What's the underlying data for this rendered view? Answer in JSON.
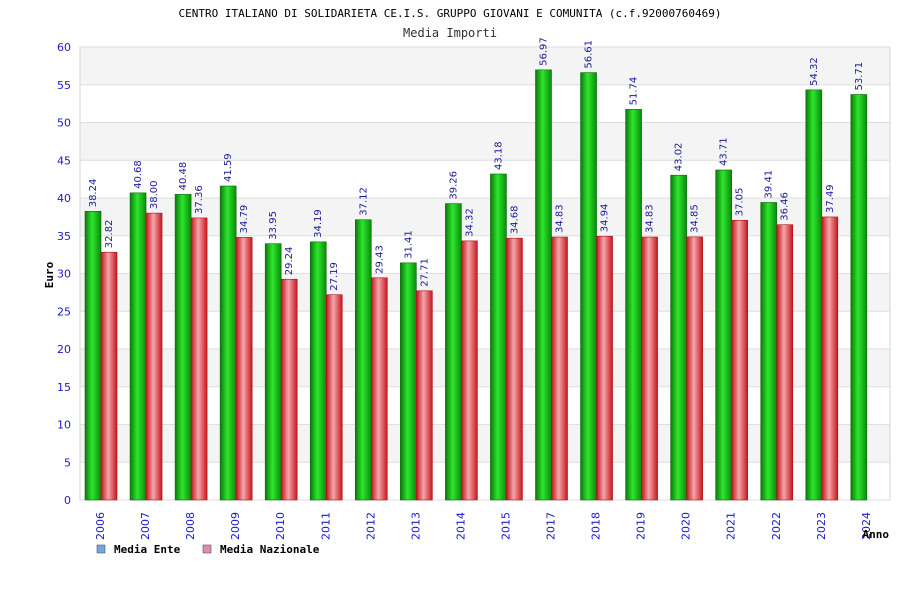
{
  "chart_data": {
    "type": "bar",
    "title": "CENTRO ITALIANO DI SOLIDARIETA CE.I.S. GRUPPO GIOVANI E COMUNITA (c.f.92000760469)",
    "subtitle": "Media Importi",
    "xlabel": "Anno",
    "ylabel": "Euro",
    "ylim": [
      0,
      60
    ],
    "yticks": [
      "0",
      "5",
      "10",
      "15",
      "20",
      "25",
      "30",
      "35",
      "40",
      "45",
      "50",
      "55",
      "60"
    ],
    "grid": true,
    "legend_position": "bottom-left",
    "categories": [
      "2006",
      "2007",
      "2008",
      "2009",
      "2010",
      "2011",
      "2012",
      "2013",
      "2014",
      "2015",
      "2017",
      "2018",
      "2019",
      "2020",
      "2021",
      "2022",
      "2023",
      "2024"
    ],
    "series": [
      {
        "name": "Media Ente",
        "legend_color": "#6ea6e8",
        "color": "#22c022",
        "values": [
          38.24,
          40.68,
          40.48,
          41.59,
          33.95,
          34.19,
          37.12,
          31.41,
          39.26,
          43.18,
          56.97,
          56.61,
          51.74,
          43.02,
          43.71,
          39.41,
          54.32,
          53.71
        ],
        "labels": [
          "38.24",
          "40.68",
          "40.48",
          "41.59",
          "33.95",
          "34.19",
          "37.12",
          "31.41",
          "39.26",
          "43.18",
          "56.97",
          "56.61",
          "51.74",
          "43.02",
          "43.71",
          "39.41",
          "54.32",
          "53.71"
        ]
      },
      {
        "name": "Media Nazionale",
        "legend_color": "#e08ab4",
        "color": "#e8262e",
        "values": [
          32.82,
          38.0,
          37.36,
          34.79,
          29.24,
          27.19,
          29.43,
          27.71,
          34.32,
          34.68,
          34.83,
          34.94,
          34.83,
          34.85,
          37.05,
          36.46,
          37.49,
          null
        ],
        "labels": [
          "32.82",
          "38.00",
          "37.36",
          "34.79",
          "29.24",
          "27.19",
          "29.43",
          "27.71",
          "34.32",
          "34.68",
          "34.83",
          "34.94",
          "34.83",
          "34.85",
          "37.05",
          "36.46",
          "37.49",
          null
        ]
      }
    ]
  }
}
